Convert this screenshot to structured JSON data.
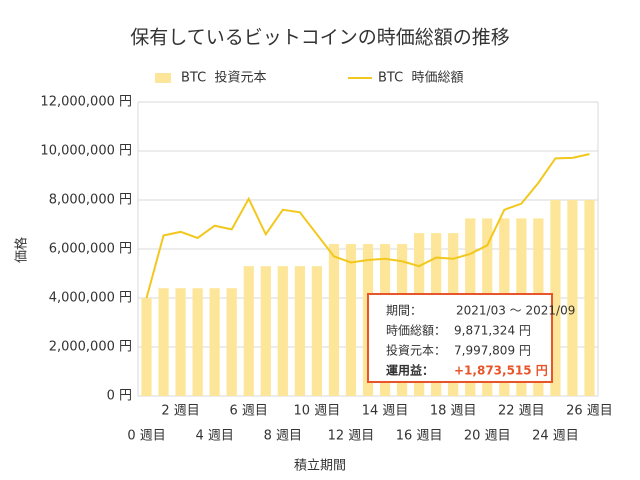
{
  "chart_data": {
    "type": "bar_line",
    "title": "保有しているビットコインの時価総額の推移",
    "x_label": "積立期間",
    "y_label": "価格",
    "categories": [
      "0 週目",
      null,
      "2 週目",
      null,
      "4 週目",
      null,
      "6 週目",
      null,
      "8 週目",
      null,
      "10 週目",
      null,
      "12 週目",
      null,
      "14 週目",
      null,
      "16 週目",
      null,
      "18 週目",
      null,
      "20 週目",
      null,
      "22 週目",
      null,
      "24 週目",
      null,
      "26 週目"
    ],
    "series": [
      {
        "name": "BTC  投資元本",
        "kind": "bar",
        "color": "#fde699",
        "values": [
          4000000,
          4400000,
          4400000,
          4400000,
          4400000,
          4400000,
          5300000,
          5300000,
          5300000,
          5300000,
          5300000,
          6200000,
          6200000,
          6200000,
          6200000,
          6200000,
          6650000,
          6650000,
          6650000,
          7250000,
          7250000,
          7250000,
          7250000,
          7250000,
          7997809,
          7997809,
          7997809
        ]
      },
      {
        "name": "BTC  時価総額",
        "kind": "line",
        "color": "#f2c81e",
        "values": [
          4000000,
          6550000,
          6700000,
          6450000,
          6950000,
          6800000,
          8050000,
          6600000,
          7600000,
          7500000,
          6600000,
          5700000,
          5450000,
          5550000,
          5600000,
          5500000,
          5300000,
          5650000,
          5600000,
          5800000,
          6150000,
          7600000,
          7850000,
          8700000,
          9700000,
          9720000,
          9871324
        ]
      }
    ],
    "ylim": [
      0,
      12000000
    ],
    "yticks": [
      {
        "value": 0,
        "label": "0 円"
      },
      {
        "value": 2000000,
        "label": "2,000,000 円"
      },
      {
        "value": 4000000,
        "label": "4,000,000 円"
      },
      {
        "value": 6000000,
        "label": "6,000,000 円"
      },
      {
        "value": 8000000,
        "label": "8,000,000 円"
      },
      {
        "value": 10000000,
        "label": "10,000,000 円"
      },
      {
        "value": 12000000,
        "label": "12,000,000 円"
      }
    ],
    "grid": true,
    "annotation": [
      {
        "label": "期間：",
        "value": "2021/03 ～ 2021/09"
      },
      {
        "label": "時価総額：",
        "value": "9,871,324 円"
      },
      {
        "label": "投資元本：",
        "value": "7,997,809 円"
      },
      {
        "label": "運用益：",
        "value": "+1,873,515 円"
      }
    ]
  }
}
